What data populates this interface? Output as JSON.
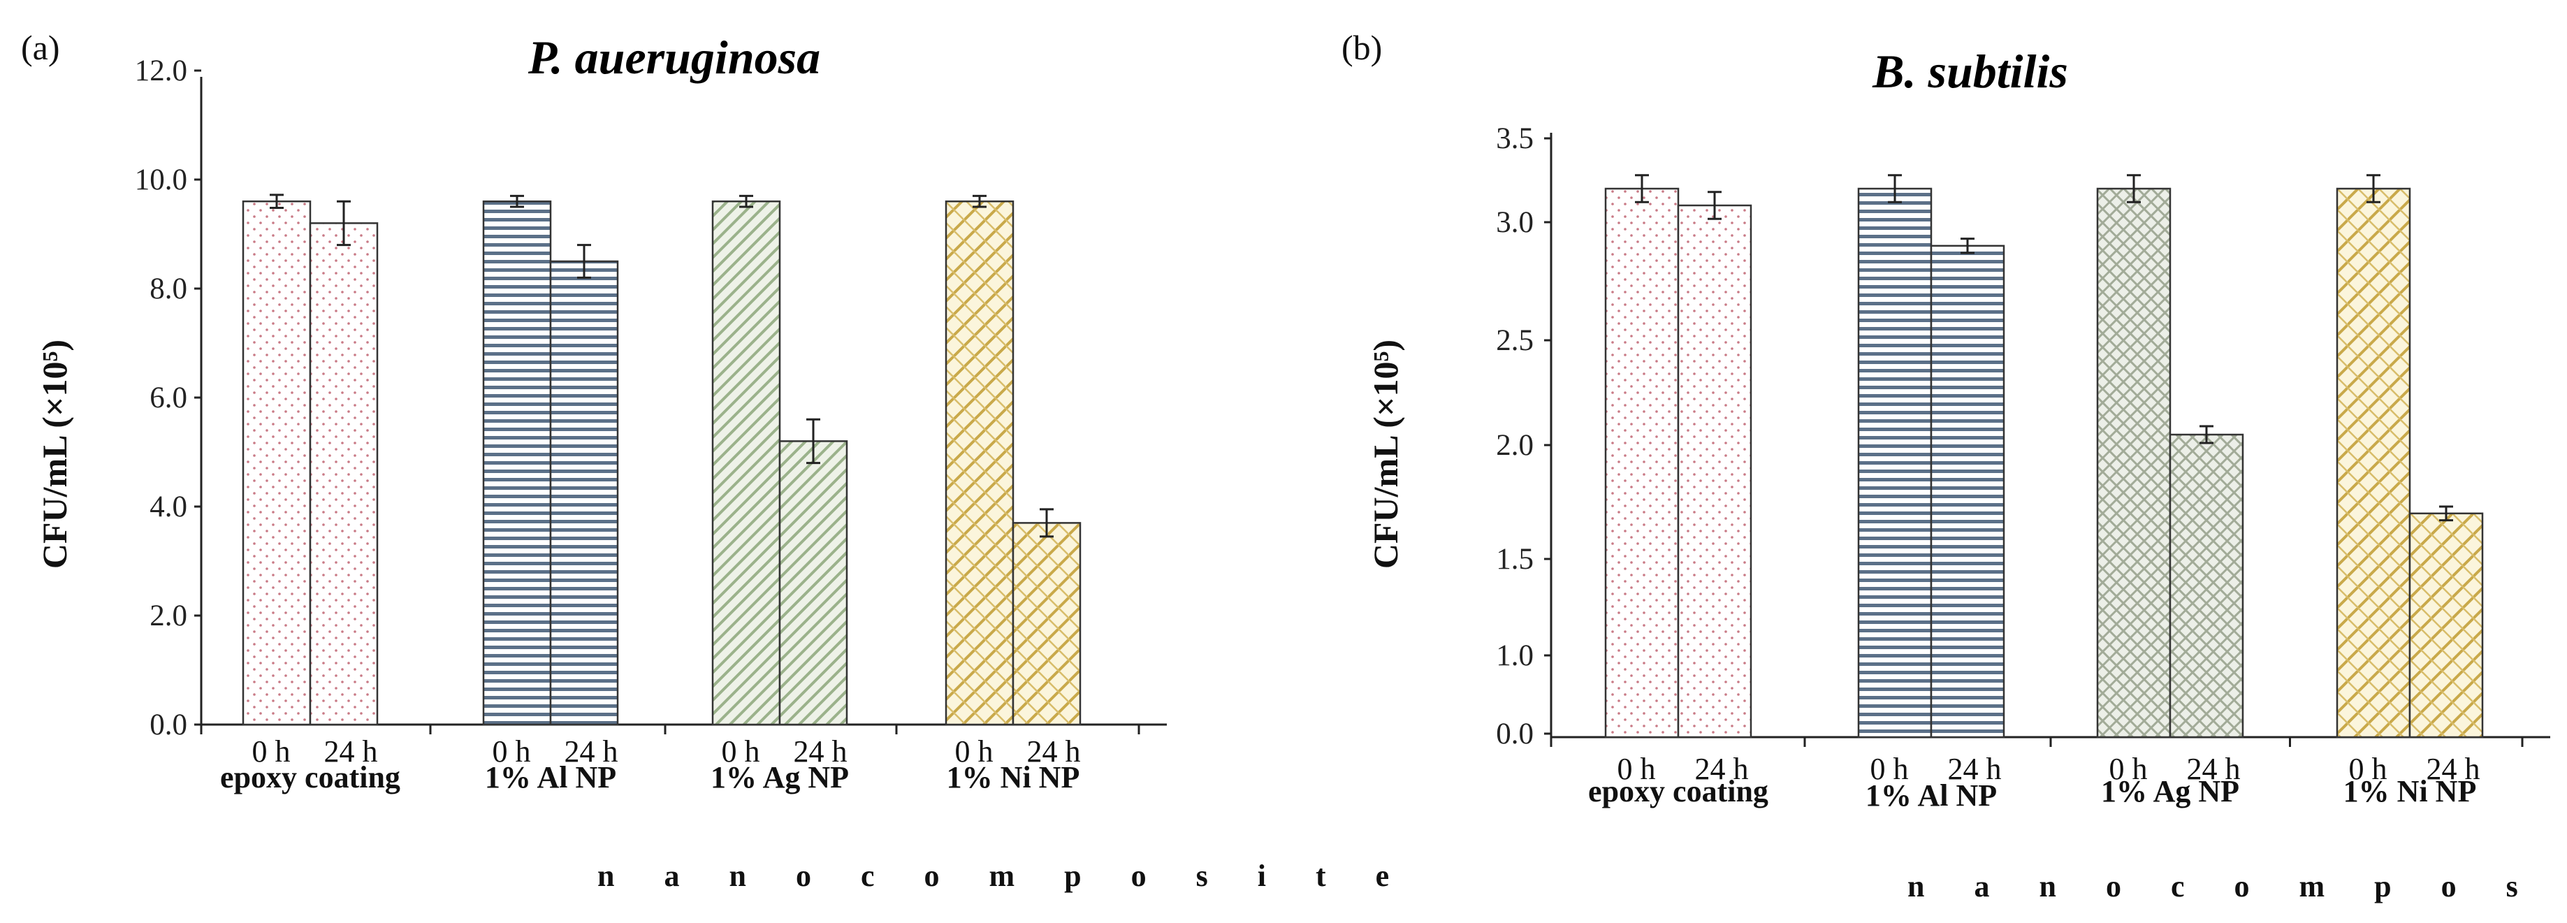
{
  "chart_data": [
    {
      "type": "bar",
      "panel_label": "(a)",
      "title": "P. aueruginosa",
      "ylabel": "CFU/mL (×10⁵)",
      "xlabel": "n a n o c o m p o s i t e",
      "ylim": [
        0,
        12
      ],
      "yticks": [
        "0.0",
        "2.0",
        "4.0",
        "6.0",
        "8.0",
        "10.0",
        "12.0"
      ],
      "time_labels": [
        "0 h",
        "24 h"
      ],
      "groups": [
        {
          "name": "epoxy coating",
          "color": "#c97a86",
          "pattern": "dots",
          "values": [
            9.6,
            9.2
          ],
          "errors": [
            0.12,
            0.4
          ]
        },
        {
          "name": "1% Al NP",
          "color": "#4d6680",
          "pattern": "hlines",
          "values": [
            9.6,
            8.5
          ],
          "errors": [
            0.1,
            0.3
          ]
        },
        {
          "name": "1% Ag NP",
          "color": "#8fa77f",
          "pattern": "diag",
          "values": [
            9.6,
            5.2
          ],
          "errors": [
            0.1,
            0.4
          ]
        },
        {
          "name": "1% Ni NP",
          "color": "#c9a94a",
          "pattern": "weave",
          "values": [
            9.6,
            3.7
          ],
          "errors": [
            0.1,
            0.25
          ]
        }
      ]
    },
    {
      "type": "bar",
      "panel_label": "(b)",
      "title": "B. subtilis",
      "ylabel": "CFU/mL (×10⁵)",
      "xlabel": "n a n o c o m p o s i t e",
      "yticks": [
        "0.0",
        "1.0",
        "1.5",
        "2.0",
        "2.5",
        "3.0",
        "3.5"
      ],
      "time_labels": [
        "0 h",
        "24 h"
      ],
      "groups": [
        {
          "name": "epoxy coating",
          "color": "#c97a86",
          "pattern": "dots",
          "values": [
            3.2,
            3.1
          ],
          "errors": [
            0.08,
            0.08
          ]
        },
        {
          "name": "1% Al NP",
          "color": "#4d6680",
          "pattern": "hlines",
          "values": [
            3.2,
            2.9
          ],
          "errors": [
            0.08,
            0.03
          ]
        },
        {
          "name": "1% Ag NP",
          "color": "#8f9a86",
          "pattern": "cross",
          "values": [
            3.2,
            2.05
          ],
          "errors": [
            0.08,
            0.04
          ]
        },
        {
          "name": "1% Ni NP",
          "color": "#c9a94a",
          "pattern": "weave",
          "values": [
            3.2,
            1.7
          ],
          "errors": [
            0.08,
            0.03
          ]
        }
      ]
    }
  ]
}
